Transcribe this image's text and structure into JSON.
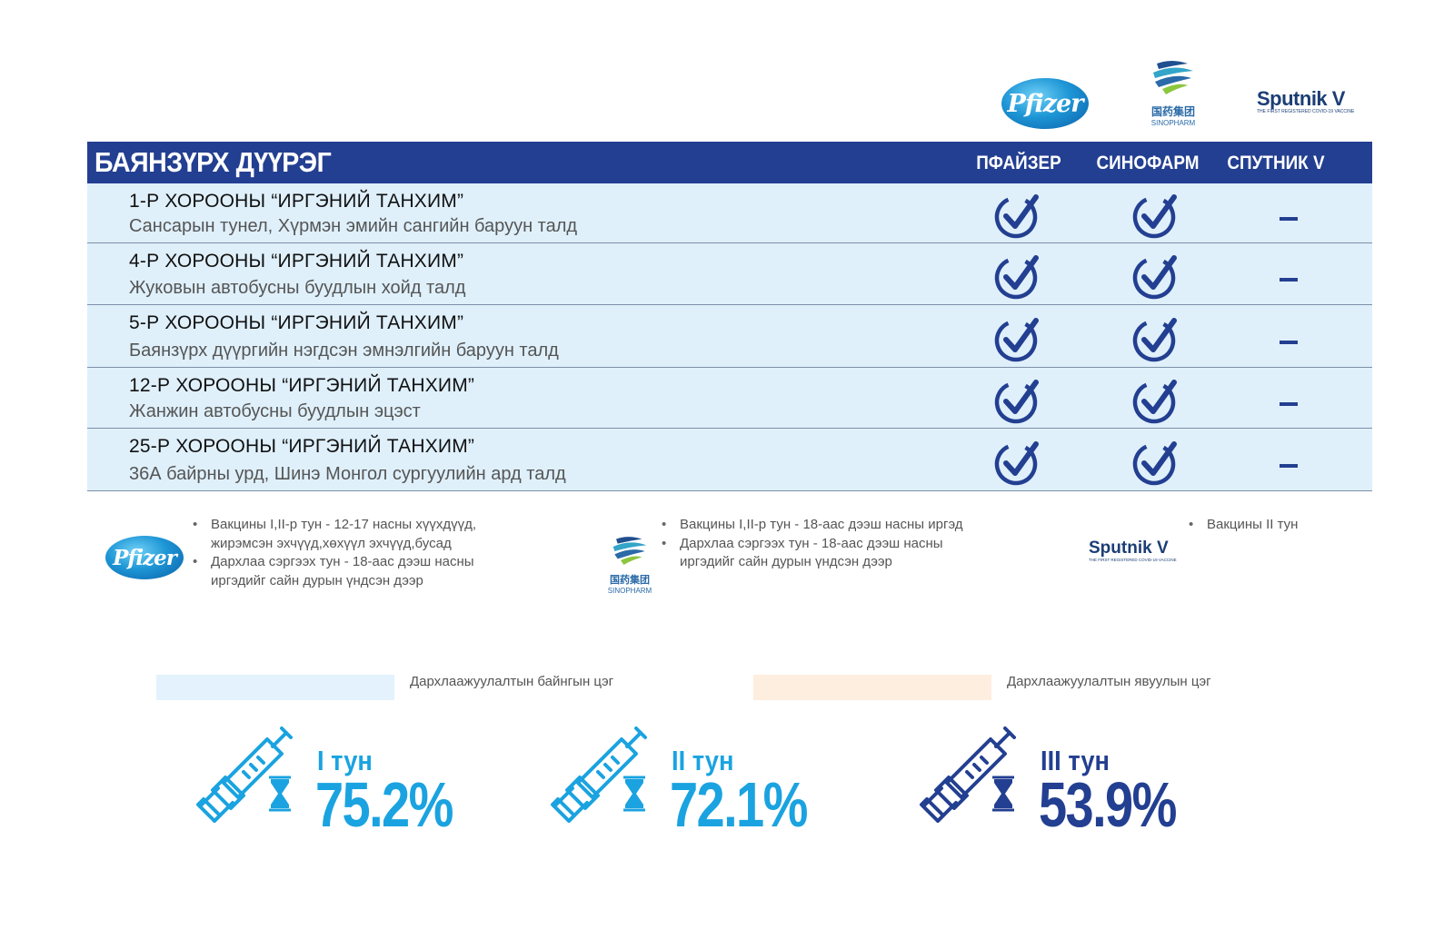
{
  "logos": {
    "pfizer": "Pfizer",
    "sinopharm_cn": "国药集团",
    "sinopharm_en": "SINOPHARM",
    "sputnik": "Sputnik V",
    "sputnik_tag": "THE FIRST REGISTERED COVID-19 VACCINE"
  },
  "table": {
    "district": "БАЯНЗҮРХ ДҮҮРЭГ",
    "vaccines": [
      "ПФАЙЗЕР",
      "СИНОФАРМ",
      "СПУТНИК V"
    ],
    "rows": [
      {
        "title": "1-Р ХОРООНЫ “ИРГЭНИЙ ТАНХИМ”",
        "address": "Сансарын тунел, Хүрмэн эмийн сангийн баруун талд",
        "pfizer": true,
        "sinopharm": true,
        "sputnik": false
      },
      {
        "title": "4-Р ХОРООНЫ “ИРГЭНИЙ ТАНХИМ”",
        "address": "Жуковын автобусны буудлын хойд талд",
        "pfizer": true,
        "sinopharm": true,
        "sputnik": false
      },
      {
        "title": "5-Р ХОРООНЫ “ИРГЭНИЙ ТАНХИМ”",
        "address": "Баянзүрх дүүргийн нэгдсэн эмнэлгийн баруун талд",
        "pfizer": true,
        "sinopharm": true,
        "sputnik": false
      },
      {
        "title": "12-Р ХОРООНЫ “ИРГЭНИЙ ТАНХИМ”",
        "address": "Жанжин автобусны буудлын эцэст",
        "pfizer": true,
        "sinopharm": true,
        "sputnik": false
      },
      {
        "title": "25-Р ХОРООНЫ “ИРГЭНИЙ ТАНХИМ”",
        "address": "36А байрны урд, Шинэ Монгол сургуулийн ард талд",
        "pfizer": true,
        "sinopharm": true,
        "sputnik": false
      }
    ]
  },
  "notes": {
    "pfizer": [
      "Вакцины I,II-р тун - 12-17 насны хүүхдүүд, жирэмсэн эхчүүд,хөхүүл эхчүүд,бусад",
      "Дархлаа сэргээх тун - 18-аас дээш насны иргэдийг сайн дурын үндсэн дээр"
    ],
    "sinopharm": [
      "Вакцины I,II-р тун - 18-аас дээш насны иргэд",
      "Дархлаа сэргээх тун - 18-аас дээш насны иргэдийг сайн дурын үндсэн дээр"
    ],
    "sputnik": [
      "Вакцины II тун"
    ]
  },
  "key": {
    "fixed": {
      "label": "Дархлаажуулалтын байнгын цэг",
      "color": "#e3f2fc"
    },
    "mobile": {
      "label": "Дархлаажуулалтын явуулын цэг",
      "color": "#fdeee0"
    }
  },
  "doses": [
    {
      "label": "I тун",
      "percent": "75.2%",
      "color": "#1aa3e0"
    },
    {
      "label": "II тун",
      "percent": "72.1%",
      "color": "#1aa3e0"
    },
    {
      "label": "III тун",
      "percent": "53.9%",
      "color": "#233f91"
    }
  ],
  "colors": {
    "header_bg": "#233f91",
    "row_bg": "#dff0fb",
    "check": "#233f91"
  }
}
